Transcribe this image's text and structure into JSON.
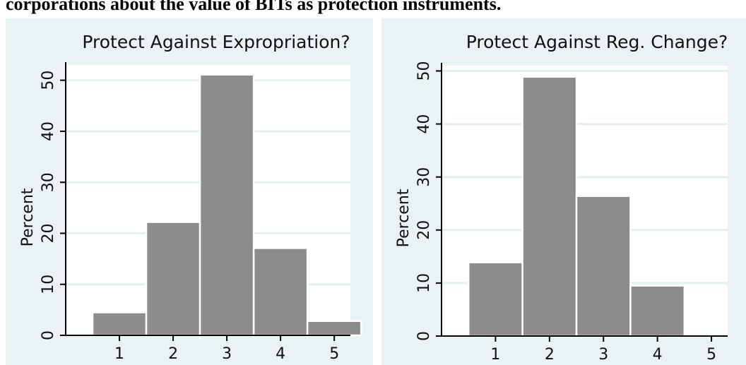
{
  "caption": "corporations about the value of BITs as protection instruments.",
  "colors": {
    "bar_fill": "#8c8c8c",
    "bar_stroke": "#ffffff",
    "plot_bg": "#ffffff",
    "panel_bg": "#eaf2f3",
    "grid": "#e6eff0",
    "axis": "#000000"
  },
  "chart_data": [
    {
      "type": "bar",
      "title": "Protect Against Expropriation?",
      "ylabel": "Percent",
      "xlabel": "",
      "categories": [
        "1",
        "2",
        "3",
        "4",
        "5"
      ],
      "values": [
        4.5,
        22.2,
        51.1,
        17.1,
        2.8
      ],
      "yticks": [
        0,
        10,
        20,
        30,
        40,
        50
      ],
      "ylim": [
        0,
        53
      ],
      "xlim": [
        0,
        5.3
      ],
      "grid": true
    },
    {
      "type": "bar",
      "title": "Protect Against Reg. Change?",
      "ylabel": "Percent",
      "xlabel": "",
      "categories": [
        "1",
        "2",
        "3",
        "4",
        "5"
      ],
      "values": [
        13.9,
        48.9,
        26.4,
        9.5,
        0
      ],
      "yticks": [
        0,
        10,
        20,
        30,
        40,
        50
      ],
      "ylim": [
        0,
        51
      ],
      "xlim": [
        0,
        5.3
      ],
      "grid": true
    }
  ]
}
